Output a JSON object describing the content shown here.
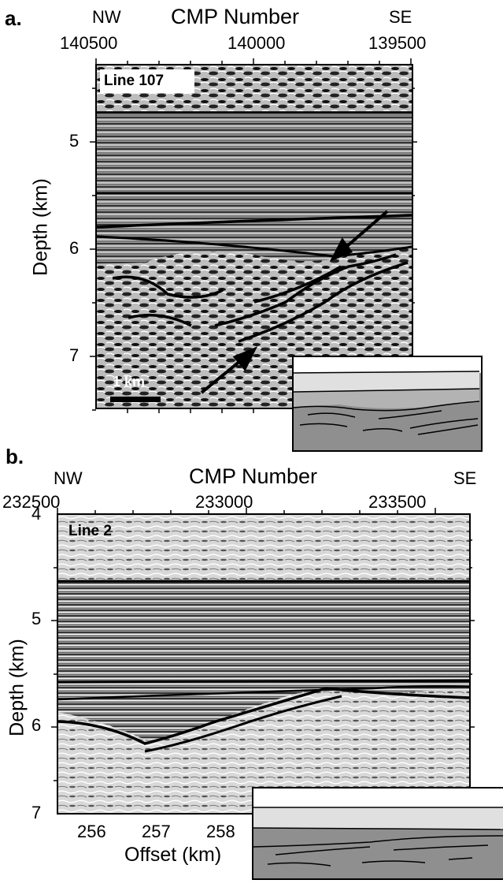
{
  "panel_a": {
    "letter": "a.",
    "title": "CMP Number",
    "dir_left": "NW",
    "dir_right": "SE",
    "top_ticks": [
      "140500",
      "140000",
      "139500"
    ],
    "line_label": "Line 107",
    "ylabel": "Depth (km)",
    "depth_ticks": [
      "5",
      "6",
      "7"
    ],
    "scale_bar": "1 km"
  },
  "panel_b": {
    "letter": "b.",
    "title": "CMP Number",
    "dir_left": "NW",
    "dir_right": "SE",
    "top_ticks": [
      "232500",
      "233000",
      "233500"
    ],
    "line_label": "Line 2",
    "ylabel": "Depth (km)",
    "depth_ticks": [
      "4",
      "5",
      "6",
      "7"
    ],
    "xlabel": "Offset (km)",
    "offset_ticks": [
      "256",
      "257",
      "258"
    ]
  }
}
